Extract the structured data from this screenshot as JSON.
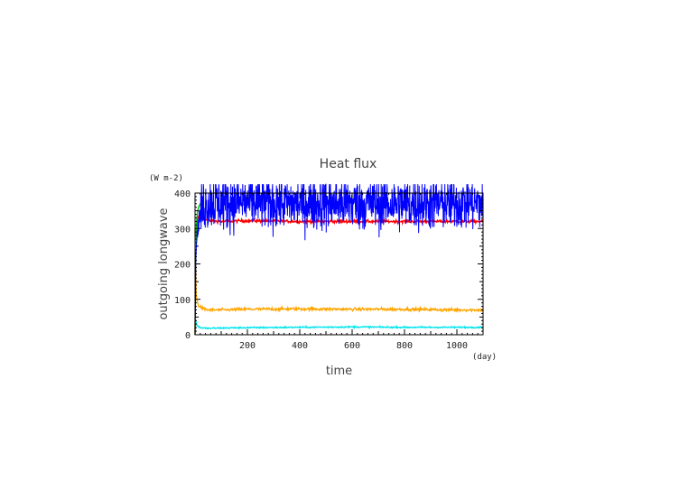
{
  "chart_data": {
    "type": "line",
    "title": "Heat flux",
    "xlabel": "time",
    "ylabel": "outgoing longwave",
    "x_unit": "(day)",
    "y_unit": "(W m-2)",
    "xlim": [
      0,
      1100
    ],
    "ylim": [
      0,
      400
    ],
    "x_ticks": [
      "200",
      "400",
      "600",
      "800",
      "1000"
    ],
    "y_ticks": [
      "0",
      "100",
      "200",
      "300",
      "400"
    ],
    "grid": false,
    "legend": "none",
    "series": [
      {
        "color": "#0000ff",
        "x": [
          0,
          3,
          6,
          10,
          20,
          30,
          40,
          60,
          100,
          200,
          400,
          600,
          800,
          1000,
          1100
        ],
        "y": [
          0,
          220,
          260,
          300,
          340,
          360,
          370,
          375,
          372,
          375,
          370,
          372,
          370,
          372,
          370
        ],
        "noise": 38
      },
      {
        "color": "#ff0000",
        "x": [
          0,
          3,
          6,
          10,
          20,
          30,
          40,
          60,
          100,
          200,
          400,
          600,
          800,
          1000,
          1100
        ],
        "y": [
          0,
          270,
          310,
          330,
          335,
          328,
          325,
          322,
          320,
          322,
          320,
          320,
          320,
          320,
          320
        ],
        "noise": 2
      },
      {
        "color": "#00c000",
        "x": [
          0,
          3,
          6,
          10,
          15,
          20,
          25,
          30
        ],
        "y": [
          0,
          250,
          320,
          350,
          362,
          370,
          372,
          372
        ],
        "noise": 1
      },
      {
        "color": "#ffa500",
        "x": [
          0,
          2,
          4,
          6,
          10,
          15,
          20,
          30,
          50,
          100,
          200,
          400,
          600,
          800,
          1000,
          1100
        ],
        "y": [
          300,
          200,
          120,
          100,
          88,
          82,
          78,
          74,
          70,
          70,
          72,
          73,
          72,
          72,
          70,
          70
        ],
        "noise": 2
      },
      {
        "color": "#00e5ee",
        "x": [
          0,
          2,
          4,
          6,
          10,
          15,
          20,
          30,
          50,
          100,
          200,
          400,
          600,
          800,
          1000,
          1100
        ],
        "y": [
          50,
          40,
          35,
          30,
          25,
          22,
          20,
          19,
          18,
          19,
          20,
          21,
          22,
          21,
          21,
          21
        ],
        "noise": 1
      }
    ]
  }
}
